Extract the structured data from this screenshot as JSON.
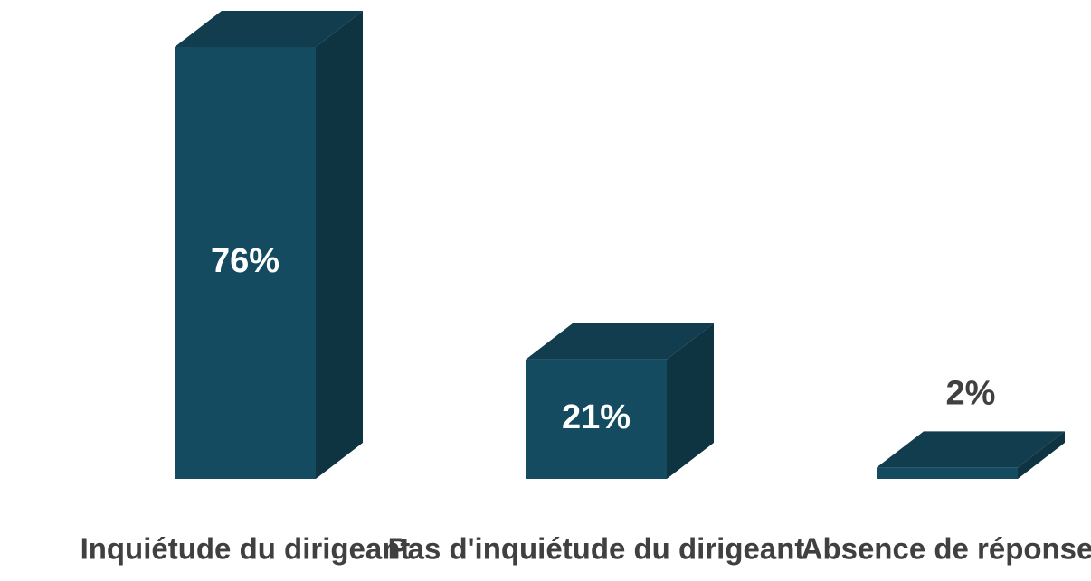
{
  "chart_data": {
    "type": "bar3d",
    "categories": [
      "Inquiétude du dirigeant",
      "Pas d'inquiétude du dirigeant",
      "Absence de réponse"
    ],
    "values": [
      76,
      21,
      2
    ],
    "value_labels": [
      "76%",
      "21%",
      "2%"
    ],
    "color": "#154b60"
  }
}
